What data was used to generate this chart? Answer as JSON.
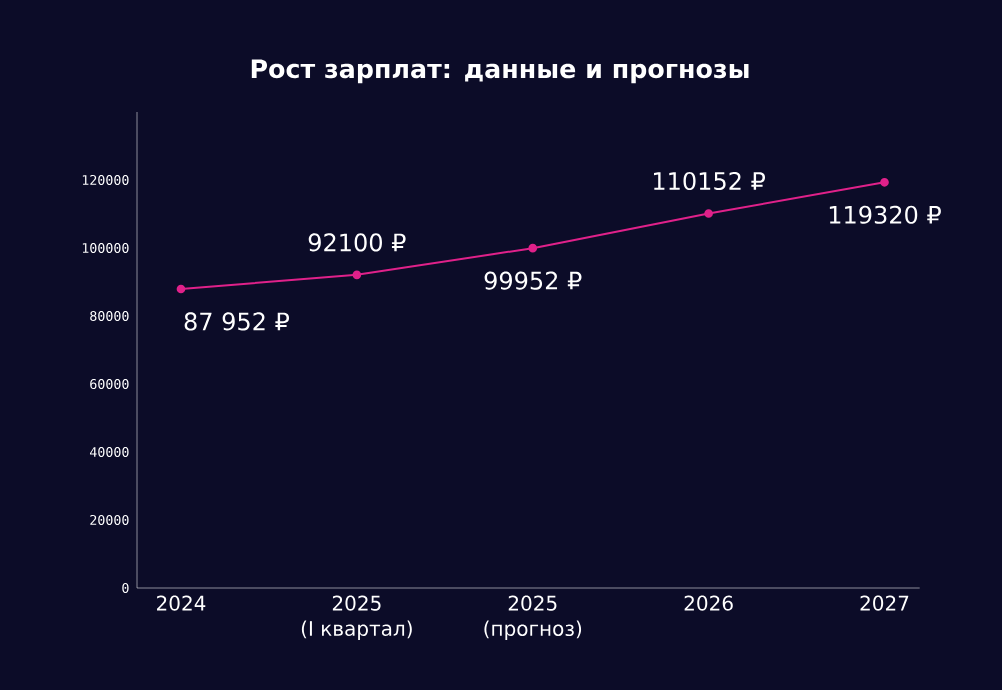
{
  "chart_data": {
    "type": "line",
    "title": "Рост зарплат: данные и прогнозы",
    "categories": [
      "2024",
      "2025\n(I квартал)",
      "2025\n(прогноз)",
      "2026",
      "2027"
    ],
    "values": [
      87952,
      92100,
      99952,
      110152,
      119320
    ],
    "value_labels": [
      "87 952 ₽",
      "92100 ₽",
      "99952 ₽",
      "110152 ₽",
      "119320 ₽"
    ],
    "color": "#e0218a",
    "marker": "circle",
    "line_style": "solid",
    "ylim": [
      0,
      140000
    ],
    "yticks": [
      0,
      20000,
      40000,
      60000,
      80000,
      100000,
      120000
    ],
    "grid": false
  }
}
